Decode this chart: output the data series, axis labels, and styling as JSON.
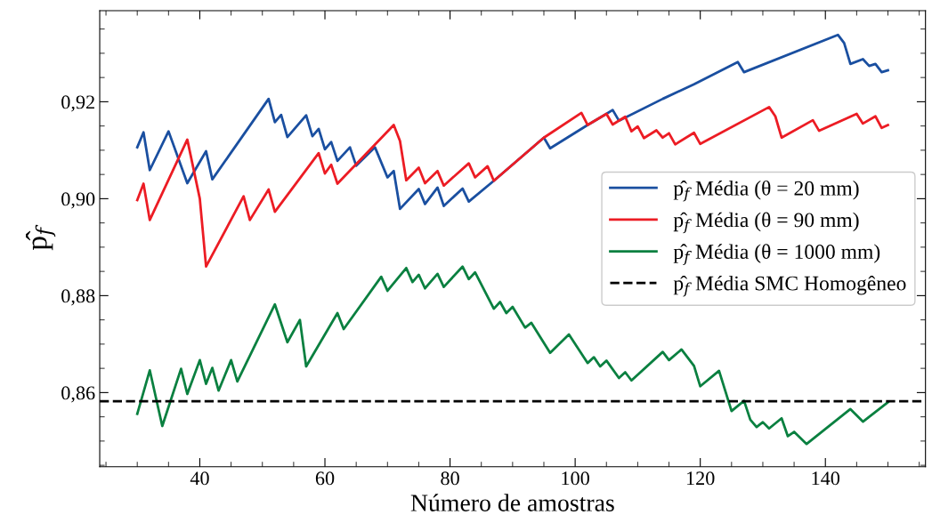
{
  "chart_data": {
    "type": "line",
    "xlabel": "Número de amostras",
    "ylabel": "p̂$_{f}$",
    "xlim": [
      24,
      156
    ],
    "xticks": [
      40,
      60,
      80,
      100,
      120,
      140
    ],
    "ylim": [
      0.8447,
      0.9388
    ],
    "yticks": [
      {
        "value": 0.86,
        "label": "0,86"
      },
      {
        "value": 0.88,
        "label": "0,88"
      },
      {
        "value": 0.9,
        "label": "0,90"
      },
      {
        "value": 0.92,
        "label": "0,92"
      }
    ],
    "grid": false,
    "legend": "center right",
    "line_style": "solid",
    "marker": "none",
    "series": [
      {
        "name": "p̂$_{f}$ Média (θ = 20 mm)",
        "color": "#1a4fa0",
        "x": [
          30,
          31,
          32,
          35,
          38,
          41,
          42,
          51,
          52,
          53,
          54,
          57,
          58,
          59,
          60,
          61,
          62,
          64,
          65,
          68,
          70,
          71,
          72,
          75,
          76,
          78,
          79,
          82,
          83,
          87,
          95,
          96,
          102,
          105,
          106,
          107,
          114,
          119,
          126,
          127,
          142,
          143,
          144,
          146,
          147,
          148,
          149,
          150
        ],
        "values": [
          0.9106,
          0.9137,
          0.9059,
          0.9139,
          0.9032,
          0.9098,
          0.904,
          0.9206,
          0.9158,
          0.9173,
          0.9127,
          0.9172,
          0.9129,
          0.9144,
          0.9102,
          0.9117,
          0.9078,
          0.9106,
          0.9068,
          0.9106,
          0.9044,
          0.9057,
          0.8979,
          0.902,
          0.8989,
          0.9023,
          0.8985,
          0.9021,
          0.8994,
          0.9037,
          0.9126,
          0.9104,
          0.9152,
          0.9175,
          0.9183,
          0.9161,
          0.9206,
          0.9236,
          0.9282,
          0.9261,
          0.9338,
          0.9321,
          0.9278,
          0.9288,
          0.9274,
          0.9278,
          0.9261,
          0.9265
        ]
      },
      {
        "name": "p̂$_{f}$ Média (θ = 90 mm)",
        "color": "#ec1c24",
        "x": [
          30,
          31,
          32,
          38,
          40,
          41,
          47,
          48,
          51,
          52,
          59,
          60,
          61,
          62,
          71,
          72,
          73,
          75,
          76,
          78,
          79,
          83,
          84,
          86,
          87,
          95,
          101,
          102,
          105,
          106,
          108,
          109,
          110,
          111,
          113,
          114,
          115,
          116,
          119,
          120,
          131,
          132,
          133,
          138,
          139,
          145,
          146,
          148,
          149,
          150
        ],
        "values": [
          0.8997,
          0.9031,
          0.8956,
          0.9122,
          0.9,
          0.886,
          0.9005,
          0.8956,
          0.9019,
          0.8973,
          0.9094,
          0.9052,
          0.907,
          0.9031,
          0.9152,
          0.9119,
          0.9038,
          0.9064,
          0.9032,
          0.9057,
          0.9027,
          0.9073,
          0.9044,
          0.9067,
          0.9037,
          0.9126,
          0.9177,
          0.9152,
          0.9175,
          0.9153,
          0.9169,
          0.9139,
          0.9149,
          0.9125,
          0.9141,
          0.9126,
          0.9135,
          0.9112,
          0.9136,
          0.9113,
          0.9189,
          0.917,
          0.9126,
          0.9162,
          0.914,
          0.9175,
          0.9155,
          0.917,
          0.9146,
          0.9152
        ]
      },
      {
        "name": "p̂$_{f}$ Média (θ = 1000 mm)",
        "color": "#0a8040",
        "x": [
          30,
          32,
          34,
          37,
          38,
          40,
          41,
          42,
          43,
          45,
          46,
          52,
          54,
          56,
          57,
          62,
          63,
          69,
          70,
          73,
          74,
          75,
          76,
          78,
          79,
          82,
          83,
          84,
          87,
          88,
          89,
          90,
          92,
          93,
          96,
          99,
          102,
          103,
          104,
          105,
          107,
          108,
          109,
          114,
          115,
          117,
          119,
          120,
          123,
          125,
          127,
          128,
          129,
          130,
          131,
          133,
          134,
          135,
          137,
          144,
          146,
          150
        ],
        "values": [
          0.8556,
          0.8646,
          0.8531,
          0.8649,
          0.8597,
          0.8667,
          0.8618,
          0.8651,
          0.8604,
          0.8667,
          0.8623,
          0.8782,
          0.8704,
          0.875,
          0.8654,
          0.8764,
          0.8731,
          0.8839,
          0.881,
          0.8857,
          0.8828,
          0.8843,
          0.8815,
          0.8845,
          0.8818,
          0.886,
          0.8834,
          0.8848,
          0.8773,
          0.8787,
          0.8764,
          0.8777,
          0.8734,
          0.8744,
          0.8682,
          0.872,
          0.8661,
          0.8673,
          0.8654,
          0.8666,
          0.863,
          0.8642,
          0.8625,
          0.8684,
          0.8667,
          0.8689,
          0.8655,
          0.8613,
          0.8645,
          0.8562,
          0.8583,
          0.8544,
          0.8529,
          0.8539,
          0.8526,
          0.8547,
          0.851,
          0.8519,
          0.8494,
          0.8566,
          0.854,
          0.858
        ]
      }
    ],
    "ref_lines": [
      {
        "axis": "y",
        "value": 0.8582,
        "label": "p̂$_{f}$ Média SMC Homogêneo",
        "color": "#000000",
        "line_style": "dashed"
      }
    ]
  }
}
